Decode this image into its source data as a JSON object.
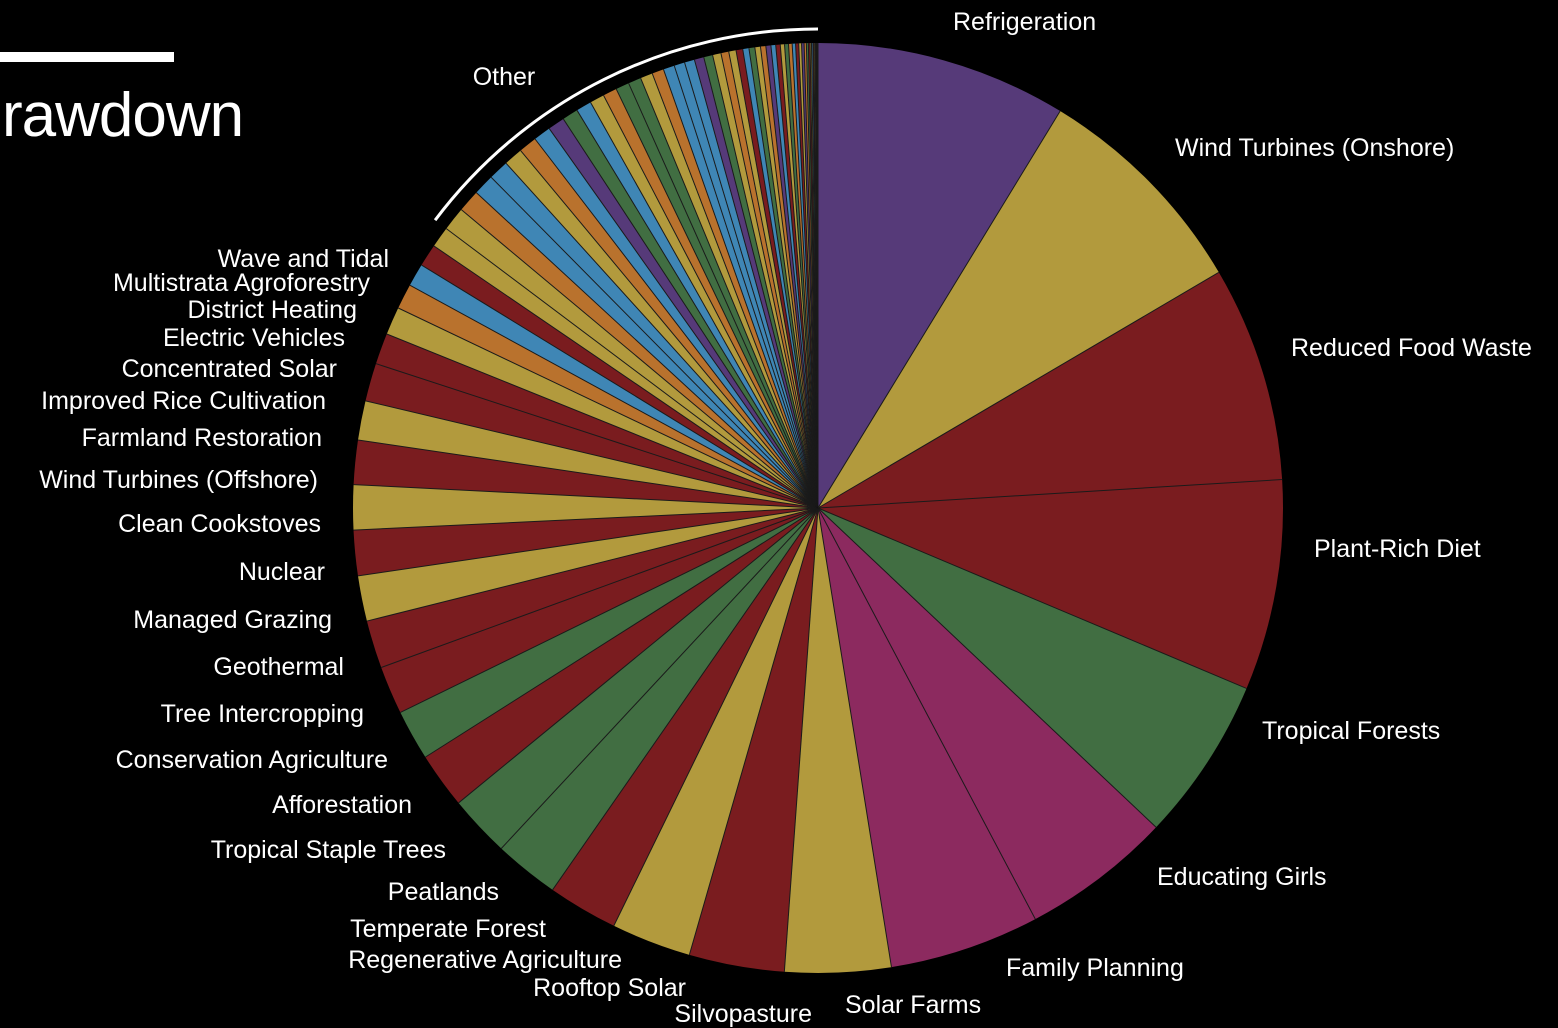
{
  "title": "rawdown",
  "chart_data": {
    "type": "pie",
    "colors": {
      "purple": "#563a79",
      "gold": "#b29a3d",
      "red": "#7a1c1f",
      "green": "#416e42",
      "magenta": "#8c2a5f",
      "blue": "#3f86b5",
      "orange": "#b9722d"
    },
    "slices": [
      {
        "label": "Refrigeration",
        "value": 8.96,
        "color": "#563a79"
      },
      {
        "label": "Wind Turbines (Onshore)",
        "value": 8.04,
        "color": "#b29a3d"
      },
      {
        "label": "Reduced Food Waste",
        "value": 7.69,
        "color": "#7a1c1f"
      },
      {
        "label": "Plant-Rich Diet",
        "value": 7.52,
        "color": "#7a1c1f"
      },
      {
        "label": "Tropical Forests",
        "value": 5.86,
        "color": "#416e42"
      },
      {
        "label": "Educating Girls",
        "value": 5.36,
        "color": "#8c2a5f"
      },
      {
        "label": "Family Planning",
        "value": 5.36,
        "color": "#8c2a5f"
      },
      {
        "label": "Solar Farms",
        "value": 3.78,
        "color": "#b29a3d"
      },
      {
        "label": "Silvopasture",
        "value": 3.4,
        "color": "#7a1c1f"
      },
      {
        "label": "Rooftop Solar",
        "value": 2.85,
        "color": "#b29a3d"
      },
      {
        "label": "Regenerative Agriculture",
        "value": 2.5,
        "color": "#7a1c1f"
      },
      {
        "label": "Temperate Forest",
        "value": 2.32,
        "color": "#416e42"
      },
      {
        "label": "Peatlands",
        "value": 2.2,
        "color": "#416e42"
      },
      {
        "label": "Tropical Staple Trees",
        "value": 1.99,
        "color": "#7a1c1f"
      },
      {
        "label": "Afforestation",
        "value": 1.8,
        "color": "#416e42"
      },
      {
        "label": "Conservation Agriculture",
        "value": 1.72,
        "color": "#7a1c1f"
      },
      {
        "label": "Tree Intercropping",
        "value": 1.71,
        "color": "#7a1c1f"
      },
      {
        "label": "Geothermal",
        "value": 1.62,
        "color": "#b29a3d"
      },
      {
        "label": "Managed Grazing",
        "value": 1.62,
        "color": "#7a1c1f"
      },
      {
        "label": "Nuclear",
        "value": 1.6,
        "color": "#b29a3d"
      },
      {
        "label": "Clean Cookstoves",
        "value": 1.58,
        "color": "#7a1c1f"
      },
      {
        "label": "Wind Turbines (Offshore)",
        "value": 1.4,
        "color": "#b29a3d"
      },
      {
        "label": "Farmland Restoration",
        "value": 1.36,
        "color": "#7a1c1f"
      },
      {
        "label": "Improved Rice Cultivation",
        "value": 1.11,
        "color": "#7a1c1f"
      },
      {
        "label": "Concentrated Solar",
        "value": 1.0,
        "color": "#b29a3d"
      },
      {
        "label": "Electric Vehicles",
        "value": 0.9,
        "color": "#b9722d"
      },
      {
        "label": "District Heating",
        "value": 0.82,
        "color": "#3f86b5"
      },
      {
        "label": "Multistrata Agroforestry",
        "value": 0.8,
        "color": "#7a1c1f"
      },
      {
        "label": "Wave and Tidal",
        "value": 0.75,
        "color": "#b29a3d"
      }
    ],
    "other": {
      "label": "Other",
      "colors": [
        "#b29a3d",
        "#b9722d",
        "#3f86b5",
        "#3f86b5",
        "#b29a3d",
        "#b9722d",
        "#3f86b5",
        "#563a79",
        "#416e42",
        "#3f86b5",
        "#b29a3d",
        "#b9722d",
        "#416e42",
        "#416e42",
        "#b29a3d",
        "#b9722d",
        "#3f86b5",
        "#3f86b5",
        "#3f86b5",
        "#563a79",
        "#416e42",
        "#b29a3d",
        "#b9722d",
        "#b29a3d",
        "#7a1c1f",
        "#3f86b5",
        "#416e42",
        "#b29a3d",
        "#b9722d",
        "#563a79",
        "#3f86b5",
        "#7a1c1f",
        "#b29a3d",
        "#416e42",
        "#b9722d",
        "#3f86b5",
        "#7a1c1f",
        "#b29a3d",
        "#563a79",
        "#b9722d",
        "#416e42",
        "#7a1c1f",
        "#b29a3d",
        "#3f86b5",
        "#7a1c1f",
        "#b29a3d",
        "#b9722d",
        "#563a79",
        "#7a1c1f",
        "#b29a3d"
      ],
      "values": [
        0.85,
        0.8,
        0.75,
        0.72,
        0.68,
        0.65,
        0.62,
        0.6,
        0.57,
        0.55,
        0.52,
        0.5,
        0.48,
        0.46,
        0.44,
        0.42,
        0.4,
        0.38,
        0.36,
        0.34,
        0.32,
        0.3,
        0.28,
        0.26,
        0.24,
        0.22,
        0.21,
        0.2,
        0.19,
        0.18,
        0.17,
        0.16,
        0.15,
        0.14,
        0.13,
        0.12,
        0.11,
        0.1,
        0.09,
        0.08,
        0.07,
        0.06,
        0.05,
        0.05,
        0.04,
        0.04,
        0.03,
        0.03,
        0.02,
        0.02
      ]
    }
  }
}
